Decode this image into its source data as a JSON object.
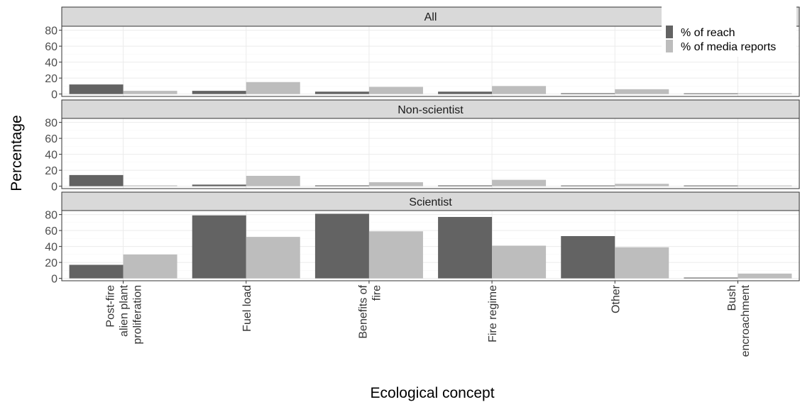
{
  "chart_data": {
    "type": "bar",
    "facets": [
      "All",
      "Non-scientist",
      "Scientist"
    ],
    "categories": [
      [
        "Post-fire",
        "alien plant",
        "proliferation"
      ],
      [
        "Fuel load"
      ],
      [
        "Benefits of",
        "fire"
      ],
      [
        "Fire regime"
      ],
      [
        "Other"
      ],
      [
        "Bush",
        "encroachment"
      ]
    ],
    "series": [
      {
        "name": "% of reach",
        "color": "#636363",
        "values": {
          "All": [
            12,
            4,
            3,
            3,
            1,
            0
          ],
          "Non-scientist": [
            14,
            2,
            1,
            1,
            0,
            0
          ],
          "Scientist": [
            17,
            79,
            81,
            77,
            53,
            1
          ]
        }
      },
      {
        "name": "% of media reports",
        "color": "#bdbdbd",
        "values": {
          "All": [
            4,
            15,
            9,
            10,
            6,
            1
          ],
          "Non-scientist": [
            1,
            13,
            5,
            8,
            3,
            0
          ],
          "Scientist": [
            30,
            52,
            59,
            41,
            39,
            6
          ]
        }
      }
    ],
    "yticks": [
      0,
      20,
      40,
      60,
      80
    ],
    "ylim": [
      -3,
      85
    ],
    "xlabel": "Ecological concept",
    "ylabel": "Percentage",
    "legend_position": "top-right",
    "grid": true
  }
}
